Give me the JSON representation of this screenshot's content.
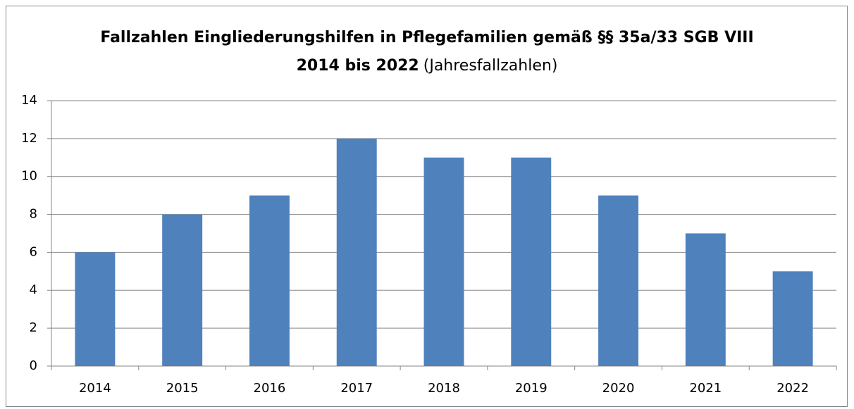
{
  "chart_data": {
    "type": "bar",
    "title": "Fallzahlen Eingliederungshilfen in Pflegefamilien gemäß §§ 35a/33 SGB VIII 2014 bis 2022",
    "subtitle": "(Jahresfallzahlen)",
    "categories": [
      "2014",
      "2015",
      "2016",
      "2017",
      "2018",
      "2019",
      "2020",
      "2021",
      "2022"
    ],
    "values": [
      6,
      8,
      9,
      12,
      11,
      11,
      9,
      7,
      5
    ],
    "color": "#4f81bd",
    "ylim": [
      0,
      14
    ],
    "yticks": [
      0,
      2,
      4,
      6,
      8,
      10,
      12,
      14
    ],
    "grid": true
  }
}
